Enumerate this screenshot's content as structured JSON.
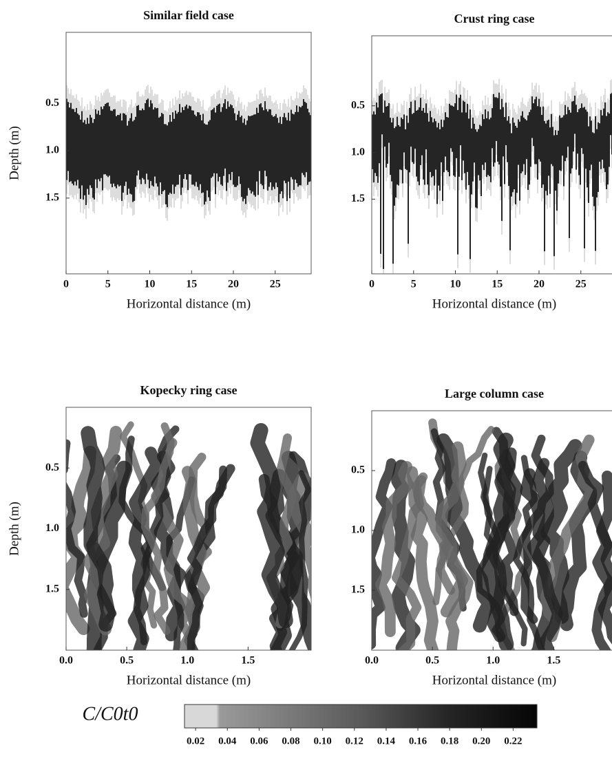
{
  "chart_data": [
    {
      "type": "heatmap",
      "title": "Similar field case",
      "xlabel": "Horizontal distance (m)",
      "ylabel": "Depth (m)",
      "xlim": [
        0,
        29.3
      ],
      "xticks": [
        0,
        5,
        10,
        15,
        20,
        25
      ],
      "ylim": [
        2.3,
        -0.25
      ],
      "yticks": [
        0.5,
        {
          "value": 1,
          "label": "1.0"
        },
        1.5
      ]
    },
    {
      "type": "heatmap",
      "title": "Crust ring case",
      "xlabel": "Horizontal distance (m)",
      "xlim": [
        0,
        29.3
      ],
      "xticks": [
        0,
        5,
        10,
        15,
        20,
        25
      ],
      "ylim": [
        2.3,
        -0.25
      ],
      "yticks": [
        0.5,
        {
          "value": 1,
          "label": "1.0"
        },
        1.5
      ]
    },
    {
      "type": "heatmap",
      "title": "Kopecky ring case",
      "xlabel": "Horizontal distance (m)",
      "ylabel": "Depth (m)",
      "xlim": [
        0,
        2.02
      ],
      "xticks": [
        {
          "value": 0,
          "label": "0.0"
        },
        0.5,
        {
          "value": 1,
          "label": "1.0"
        },
        1.5
      ],
      "ylim": [
        2,
        0
      ],
      "yticks": [
        0.5,
        {
          "value": 1,
          "label": "1.0"
        },
        1.5
      ]
    },
    {
      "type": "heatmap",
      "title": "Large column case",
      "xlabel": "Horizontal distance (m)",
      "xlim": [
        0,
        2.02
      ],
      "xticks": [
        {
          "value": 0,
          "label": "0.0"
        },
        0.5,
        {
          "value": 1,
          "label": "1.0"
        },
        1.5
      ],
      "ylim": [
        2,
        0
      ],
      "yticks": [
        0.5,
        {
          "value": 1,
          "label": "1.0"
        },
        1.5
      ]
    }
  ],
  "colorbar": {
    "label": "C/C0t0",
    "clim": [
      0.013,
      0.235
    ],
    "ticks": [
      0.02,
      0.04,
      0.06,
      0.08,
      {
        "value": 0.1,
        "label": "0.10"
      },
      0.12,
      0.14,
      0.16,
      0.18,
      {
        "value": 0.2,
        "label": "0.20"
      },
      0.22
    ]
  }
}
